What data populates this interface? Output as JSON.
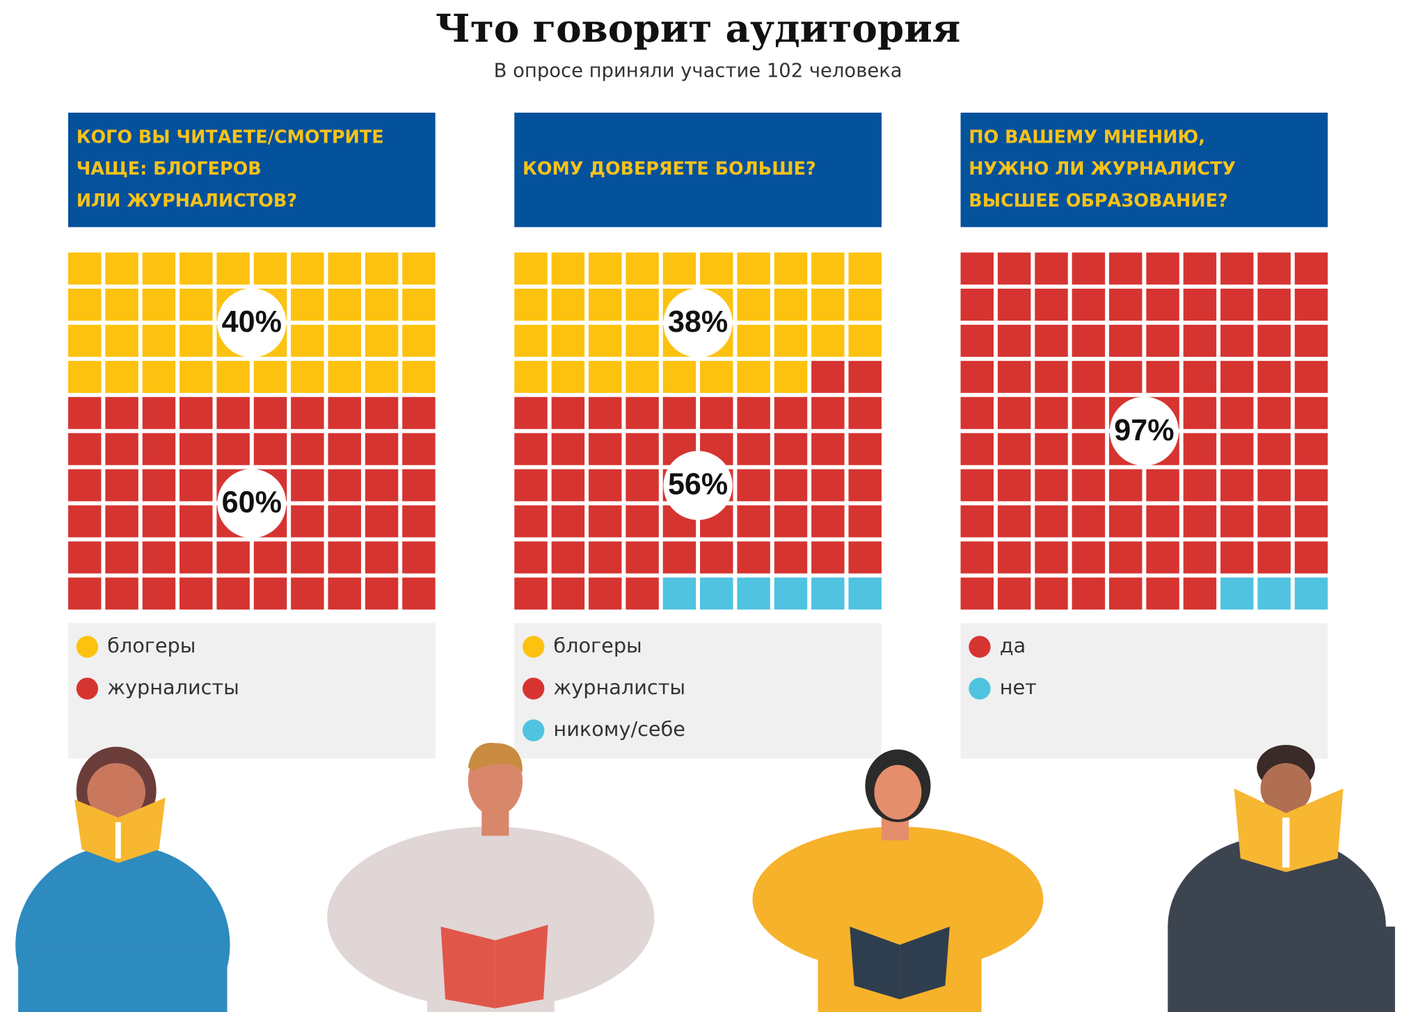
{
  "title": "Что говорит аудитория",
  "subtitle": "В опросе приняли участие 102 человека",
  "chart_data": [
    {
      "type": "waffle",
      "question": [
        "КОГО ВЫ ЧИТАЕТЕ/СМОТРИТЕ",
        "ЧАЩЕ: БЛОГЕРОВ",
        "ИЛИ ЖУРНАЛИСТОВ?"
      ],
      "rows": 10,
      "columns": 10,
      "series": [
        {
          "name": "блогеры",
          "color": "#fdc20f",
          "values": [
            40
          ],
          "value_labels": [
            "40%"
          ]
        },
        {
          "name": "журналисты",
          "color": "#d63431",
          "values": [
            60
          ],
          "value_labels": [
            "60%"
          ]
        }
      ]
    },
    {
      "type": "waffle",
      "question": [
        "КОМУ ДОВЕРЯЕТЕ БОЛЬШЕ?"
      ],
      "rows": 10,
      "columns": 10,
      "series": [
        {
          "name": "блогеры",
          "color": "#fdc20f",
          "values": [
            38
          ],
          "value_labels": [
            "38%"
          ]
        },
        {
          "name": "журналисты",
          "color": "#d63431",
          "values": [
            56
          ],
          "value_labels": [
            "56%"
          ]
        },
        {
          "name": "никому/себе",
          "color": "#4fc3e0",
          "values": [
            6
          ],
          "value_labels": [
            null
          ]
        }
      ]
    },
    {
      "type": "waffle",
      "question": [
        "ПО ВАШЕМУ МНЕНИЮ,",
        "НУЖНО ЛИ ЖУРНАЛИСТУ",
        "ВЫСШЕЕ ОБРАЗОВАНИЕ?"
      ],
      "rows": 10,
      "columns": 10,
      "series": [
        {
          "name": "да",
          "color": "#d63431",
          "values": [
            97
          ],
          "value_labels": [
            "97%"
          ]
        },
        {
          "name": "нет",
          "color": "#4fc3e0",
          "values": [
            3
          ],
          "value_labels": [
            null
          ]
        }
      ]
    }
  ]
}
